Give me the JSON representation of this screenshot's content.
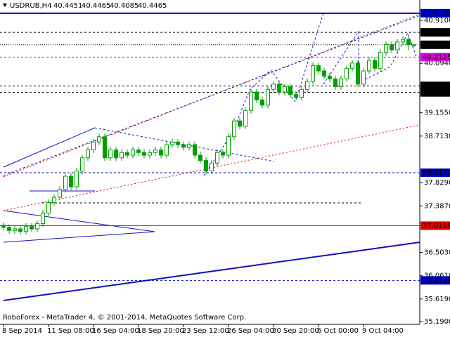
{
  "chart_data": {
    "type": "candlestick",
    "symbol": "USDRUB,H4",
    "footer": "RoboForex - MetaTrader 4, © 2001-2014, MetaQuotes Software Corp.",
    "categories": [
      "8 Sep 2014",
      null,
      null,
      null,
      null,
      null,
      null,
      null,
      "11 Sep 08:00",
      null,
      null,
      null,
      null,
      null,
      null,
      null,
      "16 Sep 04:00",
      null,
      null,
      null,
      null,
      null,
      null,
      null,
      "18 Sep 20:00",
      null,
      null,
      null,
      null,
      null,
      null,
      null,
      "23 Sep 12:00",
      null,
      null,
      null,
      null,
      null,
      null,
      null,
      "26 Sep 04:00",
      null,
      null,
      null,
      null,
      null,
      null,
      null,
      "30 Sep 20:00",
      null,
      null,
      null,
      null,
      null,
      null,
      null,
      "6 Oct 00:00",
      null,
      null,
      null,
      null,
      null,
      null,
      null,
      "9 Oct 04:00",
      null,
      null,
      null,
      null,
      null,
      null,
      null,
      null,
      null
    ],
    "open": [
      37.02,
      36.98,
      36.92,
      36.95,
      36.9,
      37.0,
      36.95,
      37.05,
      37.25,
      37.45,
      37.55,
      37.7,
      37.95,
      37.75,
      38.05,
      38.3,
      38.45,
      38.6,
      38.7,
      38.3,
      38.45,
      38.3,
      38.4,
      38.35,
      38.45,
      38.4,
      38.35,
      38.4,
      38.45,
      38.35,
      38.55,
      38.6,
      38.55,
      38.5,
      38.55,
      38.35,
      38.25,
      38.05,
      38.2,
      38.4,
      38.35,
      38.7,
      39.0,
      38.9,
      39.2,
      39.55,
      39.4,
      39.3,
      39.6,
      39.7,
      39.55,
      39.65,
      39.5,
      39.45,
      39.6,
      39.75,
      40.05,
      39.95,
      39.85,
      39.8,
      39.65,
      39.8,
      40.0,
      40.1,
      39.7,
      39.95,
      40.15,
      40.0,
      40.3,
      40.45,
      40.35,
      40.5,
      40.55,
      40.4451
    ],
    "high": [
      37.08,
      37.04,
      37.01,
      37.01,
      37.06,
      37.06,
      37.11,
      37.31,
      37.51,
      37.61,
      37.76,
      38.01,
      38.01,
      38.11,
      38.36,
      38.51,
      38.66,
      38.76,
      38.76,
      38.51,
      38.51,
      38.46,
      38.46,
      38.51,
      38.51,
      38.46,
      38.46,
      38.51,
      38.51,
      38.61,
      38.66,
      38.66,
      38.61,
      38.61,
      38.61,
      38.41,
      38.31,
      38.26,
      38.46,
      38.46,
      38.76,
      39.06,
      39.06,
      39.26,
      39.61,
      39.61,
      39.46,
      39.66,
      39.76,
      39.76,
      39.71,
      39.71,
      39.56,
      39.66,
      39.81,
      40.11,
      40.11,
      40.01,
      39.91,
      39.86,
      39.86,
      40.06,
      40.16,
      40.16,
      40.01,
      40.21,
      40.21,
      40.36,
      40.51,
      40.51,
      40.56,
      40.61,
      40.61,
      40.4465
    ],
    "low": [
      36.92,
      36.86,
      36.86,
      36.84,
      36.84,
      36.89,
      36.89,
      36.99,
      37.19,
      37.39,
      37.49,
      37.64,
      37.69,
      37.69,
      37.99,
      38.24,
      38.39,
      38.54,
      38.24,
      38.24,
      38.24,
      38.24,
      38.29,
      38.29,
      38.34,
      38.29,
      38.29,
      38.34,
      38.29,
      38.29,
      38.49,
      38.49,
      38.44,
      38.44,
      38.29,
      38.19,
      37.99,
      37.99,
      38.14,
      38.29,
      38.29,
      38.64,
      38.84,
      38.84,
      39.14,
      39.34,
      39.24,
      39.24,
      39.54,
      39.49,
      39.49,
      39.44,
      39.39,
      39.39,
      39.54,
      39.69,
      39.89,
      39.79,
      39.74,
      39.59,
      39.59,
      39.74,
      39.94,
      39.64,
      39.64,
      39.89,
      39.94,
      39.94,
      40.24,
      40.29,
      40.29,
      40.44,
      40.34,
      40.4085
    ],
    "close": [
      36.98,
      36.92,
      36.95,
      36.9,
      37.0,
      36.95,
      37.05,
      37.25,
      37.45,
      37.55,
      37.7,
      37.95,
      37.75,
      38.05,
      38.3,
      38.45,
      38.6,
      38.7,
      38.3,
      38.45,
      38.3,
      38.4,
      38.35,
      38.45,
      38.4,
      38.35,
      38.4,
      38.45,
      38.35,
      38.55,
      38.6,
      38.55,
      38.5,
      38.55,
      38.35,
      38.25,
      38.05,
      38.2,
      38.4,
      38.35,
      38.7,
      39.0,
      38.9,
      39.2,
      39.55,
      39.4,
      39.3,
      39.6,
      39.7,
      39.55,
      39.65,
      39.5,
      39.45,
      39.6,
      39.75,
      40.05,
      39.95,
      39.85,
      39.8,
      39.65,
      39.8,
      40.0,
      40.1,
      39.7,
      39.95,
      40.15,
      40.0,
      40.3,
      40.45,
      40.35,
      40.5,
      40.55,
      40.45,
      40.4465
    ],
    "up_color": "#ffffff",
    "down_color": "#00a000",
    "wick_color": "#00a000",
    "ylim": [
      35.137,
      41.297
    ],
    "yticks": [
      {
        "value": 40.91,
        "label": "40.9100"
      },
      {
        "value": 40.094,
        "label": "40.0940"
      },
      {
        "value": 39.155,
        "label": "39.1550"
      },
      {
        "value": 38.713,
        "label": "38.7130"
      },
      {
        "value": 37.829,
        "label": "37.8290"
      },
      {
        "value": 37.387,
        "label": "37.3870"
      },
      {
        "value": 36.503,
        "label": "36.5030"
      },
      {
        "value": 36.061,
        "label": "36.0610"
      },
      {
        "value": 35.619,
        "label": "35.6190"
      },
      {
        "value": 35.19,
        "label": "35.1900"
      }
    ],
    "levels": [
      {
        "value": {
          "value": 41.046,
          "label": "41.0460"
        },
        "color": "#0000c8",
        "style": "solid"
      },
      {
        "value": 40.6822,
        "color": "#000000",
        "style": "dashed"
      },
      {
        "value": 40.4465,
        "color": "#000000",
        "style": "dotted"
      },
      {
        "value": 40.2125,
        "color": "#e000e0",
        "style": "dashed"
      },
      {
        "value": 39.6661,
        "color": "#000000",
        "style": "dashed"
      },
      {
        "value": 39.5415,
        "color": "#000000",
        "style": "dashed"
      },
      {
        "value": {
          "value": 38.017,
          "label": "38.0170"
        },
        "color": "#0000c8",
        "style": "dashed"
      },
      {
        "value": 37.0116,
        "color": "#e00000",
        "style": "solid"
      },
      {
        "value": 35.9721,
        "color": "#0000c8",
        "style": "dashed"
      }
    ]
  }
}
